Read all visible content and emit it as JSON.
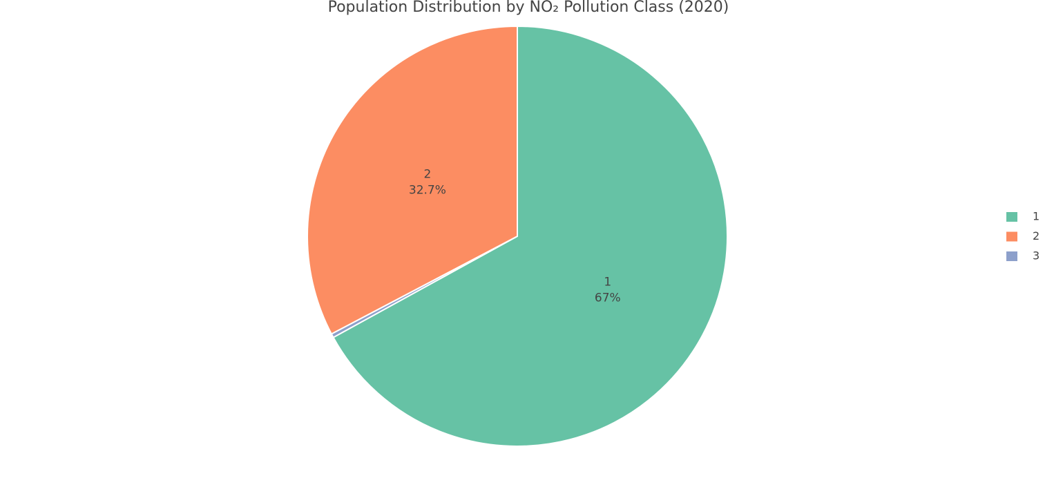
{
  "chart_data": {
    "type": "pie",
    "title": "Population Distribution by NO₂ Pollution Class (2020)",
    "categories": [
      "1",
      "3",
      "2"
    ],
    "values": [
      67,
      0.3,
      32.7
    ],
    "value_labels": [
      "67%",
      null,
      "32.7%"
    ],
    "colors": [
      "#66c2a5",
      "#8da0cb",
      "#fc8d62"
    ],
    "legend": "right"
  }
}
